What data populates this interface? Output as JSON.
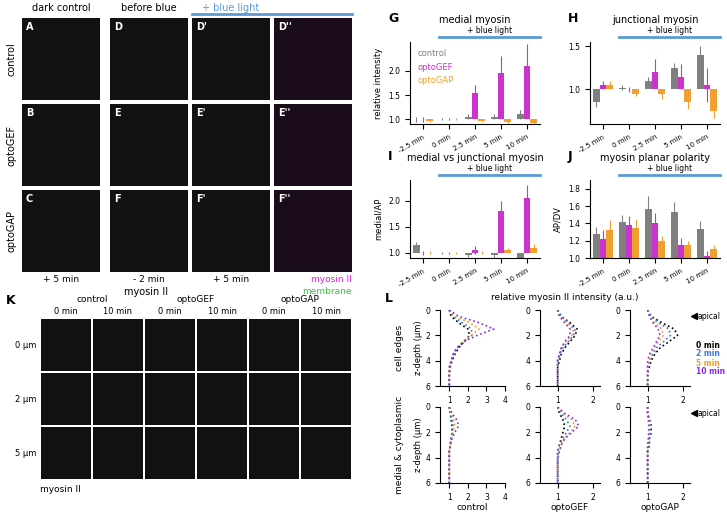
{
  "image_panels": {
    "grid": {
      "panel_labels": [
        [
          "A",
          "D",
          "D'",
          "D''"
        ],
        [
          "B",
          "E",
          "E'",
          "E''"
        ],
        [
          "C",
          "F",
          "F'",
          "F''"
        ]
      ],
      "column_headers": [
        "dark control",
        "before blue",
        "+ blue light"
      ],
      "header_colors": [
        "#000000",
        "#000000",
        "#5b9bd5"
      ],
      "row_labels": [
        "control",
        "optoGEF",
        "optoGAP"
      ],
      "time_labels": [
        "+ 5 min",
        "- 2 min",
        "+ 5 min"
      ],
      "stain_label": "myosin II",
      "overlay_legend": [
        {
          "name": "myosin II",
          "color": "#e020e0"
        },
        {
          "name": "membrane",
          "color": "#40c040"
        }
      ]
    },
    "K": {
      "panel": "K",
      "groups": [
        "control",
        "optoGEF",
        "optoGAP"
      ],
      "times": [
        "0 min",
        "10 min"
      ],
      "depths": [
        "0 µm",
        "2 µm",
        "5 µm"
      ],
      "stain_label": "myosin II"
    }
  },
  "chart_data": [
    {
      "panel": "G",
      "type": "bar",
      "title": "medial myosin",
      "ylabel": "relative intensity",
      "annotation": "+ blue light",
      "legend": "upper left",
      "categories": [
        "-2.5 min",
        "0 min",
        "2.5 min",
        "5 min",
        "10 min"
      ],
      "baseline": 1.0,
      "ylim": [
        0.9,
        2.6
      ],
      "yticks": [
        1.0,
        1.5,
        2.0
      ],
      "series": [
        {
          "name": "control",
          "color": "#808080",
          "values": [
            1.0,
            1.0,
            1.05,
            1.05,
            1.1
          ],
          "errors": [
            0.05,
            0.02,
            0.05,
            0.05,
            0.1
          ]
        },
        {
          "name": "optoGEF",
          "color": "#cc33cc",
          "values": [
            1.0,
            1.0,
            1.55,
            1.95,
            2.1
          ],
          "errors": [
            0.05,
            0.02,
            0.15,
            0.35,
            0.45
          ]
        },
        {
          "name": "optoGAP",
          "color": "#f0a030",
          "values": [
            0.97,
            1.0,
            0.97,
            0.95,
            0.93
          ],
          "errors": [
            0.03,
            0.02,
            0.03,
            0.05,
            0.05
          ]
        }
      ]
    },
    {
      "panel": "H",
      "type": "bar",
      "title": "junctional myosin",
      "annotation": "+ blue light",
      "categories": [
        "-2.5 min",
        "0 min",
        "2.5 min",
        "5 min",
        "10 min"
      ],
      "baseline": 1.0,
      "ylim": [
        0.6,
        1.55
      ],
      "yticks": [
        1.0,
        1.5
      ],
      "series": [
        {
          "name": "control",
          "color": "#808080",
          "values": [
            0.85,
            1.02,
            1.1,
            1.25,
            1.4
          ],
          "errors": [
            0.05,
            0.03,
            0.05,
            0.06,
            0.1
          ]
        },
        {
          "name": "optoGEF",
          "color": "#cc33cc",
          "values": [
            1.05,
            1.0,
            1.2,
            1.15,
            1.05
          ],
          "errors": [
            0.05,
            0.03,
            0.15,
            0.15,
            0.2
          ]
        },
        {
          "name": "optoGAP",
          "color": "#f0a030",
          "values": [
            1.05,
            0.95,
            0.95,
            0.85,
            0.75
          ],
          "errors": [
            0.05,
            0.03,
            0.06,
            0.08,
            0.08
          ]
        }
      ]
    },
    {
      "panel": "I",
      "type": "bar",
      "title": "medial vs junctional myosin",
      "ylabel": "medial/AP",
      "annotation": "+ blue light",
      "categories": [
        "-2.5 min",
        "0 min",
        "2.5 min",
        "5 min",
        "10 min"
      ],
      "baseline": 1.0,
      "ylim": [
        0.9,
        2.4
      ],
      "yticks": [
        1.0,
        1.5,
        2.0
      ],
      "series": [
        {
          "name": "control",
          "color": "#808080",
          "values": [
            1.15,
            1.0,
            0.95,
            0.95,
            0.9
          ],
          "errors": [
            0.05,
            0.02,
            0.04,
            0.05,
            0.05
          ]
        },
        {
          "name": "optoGEF",
          "color": "#cc33cc",
          "values": [
            1.0,
            1.0,
            1.05,
            1.8,
            2.05
          ],
          "errors": [
            0.04,
            0.02,
            0.08,
            0.2,
            0.25
          ]
        },
        {
          "name": "optoGAP",
          "color": "#f0a030",
          "values": [
            1.0,
            1.0,
            1.0,
            1.05,
            1.1
          ],
          "errors": [
            0.03,
            0.02,
            0.03,
            0.04,
            0.06
          ]
        }
      ]
    },
    {
      "panel": "J",
      "type": "bar",
      "title": "myosin planar polarity",
      "ylabel": "AP/DV",
      "annotation": "+ blue light",
      "categories": [
        "-2.5 min",
        "0 min",
        "2.5 min",
        "5 min",
        "10 min"
      ],
      "baseline": 1.0,
      "ylim": [
        1.0,
        1.9
      ],
      "yticks": [
        1.0,
        1.2,
        1.4,
        1.6,
        1.8
      ],
      "series": [
        {
          "name": "control",
          "color": "#808080",
          "values": [
            1.28,
            1.42,
            1.57,
            1.53,
            1.33
          ],
          "errors": [
            0.08,
            0.08,
            0.15,
            0.12,
            0.1
          ]
        },
        {
          "name": "optoGEF",
          "color": "#cc33cc",
          "values": [
            1.22,
            1.38,
            1.4,
            1.15,
            1.02
          ],
          "errors": [
            0.1,
            0.1,
            0.12,
            0.08,
            0.06
          ]
        },
        {
          "name": "optoGAP",
          "color": "#f0a030",
          "values": [
            1.32,
            1.35,
            1.2,
            1.15,
            1.1
          ],
          "errors": [
            0.12,
            0.1,
            0.05,
            0.05,
            0.05
          ]
        }
      ]
    },
    {
      "panel": "L",
      "type": "line",
      "title": "relative myosin II intensity (a.u.)",
      "ylabel": "z-depth (µm)",
      "annotation": "apical",
      "line_style": "dotted",
      "row_labels": [
        "cell edges",
        "medial & cytoplasmic"
      ],
      "column_labels": [
        "control",
        "optoGEF",
        "optoGAP"
      ],
      "y": [
        0,
        0.5,
        1,
        1.5,
        2,
        2.5,
        3,
        3.5,
        4,
        4.5,
        5,
        5.5,
        6
      ],
      "ylim": [
        6,
        0
      ],
      "yticks": [
        0,
        2,
        4,
        6
      ],
      "series": [
        {
          "name": "0 min",
          "color": "#000000"
        },
        {
          "name": "2 min",
          "color": "#3a7bd5"
        },
        {
          "name": "5 min",
          "color": "#e8a030"
        },
        {
          "name": "10 min",
          "color": "#8a2be2"
        }
      ],
      "subplots": [
        {
          "xlim": [
            0.5,
            4
          ],
          "xticks": [
            1,
            2,
            3,
            4
          ],
          "values": [
            [
              1.0,
              1.1,
              1.5,
              2.0,
              2.1,
              1.8,
              1.5,
              1.3,
              1.15,
              1.05,
              1.0,
              1.0,
              1.0
            ],
            [
              1.0,
              1.2,
              1.7,
              2.2,
              2.2,
              1.8,
              1.45,
              1.25,
              1.1,
              1.05,
              1.0,
              1.0,
              1.0
            ],
            [
              1.0,
              1.3,
              2.1,
              2.6,
              2.2,
              1.7,
              1.4,
              1.2,
              1.1,
              1.0,
              1.0,
              1.0,
              1.0
            ],
            [
              1.0,
              1.5,
              2.6,
              3.4,
              2.5,
              1.8,
              1.4,
              1.2,
              1.1,
              1.0,
              1.0,
              1.0,
              1.0
            ]
          ]
        },
        {
          "xlim": [
            0.5,
            2.2
          ],
          "xticks": [
            1,
            2
          ],
          "values": [
            [
              1.0,
              1.1,
              1.35,
              1.55,
              1.5,
              1.35,
              1.2,
              1.1,
              1.05,
              1.0,
              1.0,
              1.0,
              1.0
            ],
            [
              1.0,
              1.1,
              1.3,
              1.5,
              1.45,
              1.3,
              1.15,
              1.05,
              1.0,
              1.0,
              1.0,
              1.0,
              1.0
            ],
            [
              1.0,
              1.05,
              1.25,
              1.45,
              1.4,
              1.25,
              1.1,
              1.05,
              1.0,
              1.0,
              1.0,
              1.0,
              1.0
            ],
            [
              1.0,
              1.05,
              1.2,
              1.35,
              1.35,
              1.2,
              1.1,
              1.05,
              1.0,
              1.0,
              1.0,
              1.0,
              1.0
            ]
          ]
        },
        {
          "xlim": [
            0.5,
            2.2
          ],
          "xticks": [
            1,
            2
          ],
          "values": [
            [
              1.0,
              1.1,
              1.4,
              1.75,
              1.85,
              1.6,
              1.35,
              1.2,
              1.1,
              1.05,
              1.0,
              1.0,
              1.0
            ],
            [
              1.0,
              1.1,
              1.3,
              1.6,
              1.65,
              1.45,
              1.25,
              1.15,
              1.05,
              1.0,
              1.0,
              1.0,
              1.0
            ],
            [
              1.0,
              1.05,
              1.2,
              1.4,
              1.45,
              1.3,
              1.2,
              1.1,
              1.05,
              1.0,
              1.0,
              1.0,
              1.0
            ],
            [
              1.0,
              1.05,
              1.15,
              1.3,
              1.35,
              1.25,
              1.15,
              1.05,
              1.0,
              1.0,
              1.0,
              1.0,
              1.0
            ]
          ]
        },
        {
          "xlim": [
            0.5,
            4
          ],
          "xticks": [
            1,
            2,
            3,
            4
          ],
          "values": [
            [
              1.0,
              1.05,
              1.1,
              1.15,
              1.15,
              1.1,
              1.05,
              1.0,
              1.0,
              1.0,
              1.0,
              1.0,
              1.0
            ],
            [
              1.0,
              1.05,
              1.15,
              1.2,
              1.15,
              1.1,
              1.05,
              1.0,
              1.0,
              1.0,
              1.0,
              1.0,
              1.0
            ],
            [
              1.0,
              1.1,
              1.25,
              1.3,
              1.2,
              1.1,
              1.05,
              1.0,
              1.0,
              1.0,
              1.0,
              1.0,
              1.0
            ],
            [
              1.0,
              1.15,
              1.4,
              1.5,
              1.3,
              1.15,
              1.05,
              1.0,
              1.0,
              1.0,
              1.0,
              1.0,
              1.0
            ]
          ]
        },
        {
          "xlim": [
            0.5,
            2.2
          ],
          "xticks": [
            1,
            2
          ],
          "values": [
            [
              1.0,
              1.05,
              1.15,
              1.2,
              1.15,
              1.1,
              1.05,
              1.0,
              1.0,
              1.0,
              1.0,
              1.0,
              1.0
            ],
            [
              1.0,
              1.1,
              1.25,
              1.35,
              1.25,
              1.15,
              1.05,
              1.0,
              1.0,
              1.0,
              1.0,
              1.0,
              1.0
            ],
            [
              1.0,
              1.15,
              1.4,
              1.5,
              1.35,
              1.2,
              1.1,
              1.05,
              1.0,
              1.0,
              1.0,
              1.0,
              1.0
            ],
            [
              1.0,
              1.2,
              1.5,
              1.6,
              1.4,
              1.2,
              1.1,
              1.05,
              1.0,
              1.0,
              1.0,
              1.0,
              1.0
            ]
          ]
        },
        {
          "xlim": [
            0.5,
            2.2
          ],
          "xticks": [
            1,
            2
          ],
          "values": [
            [
              1.0,
              1.0,
              1.05,
              1.1,
              1.1,
              1.05,
              1.05,
              1.0,
              1.0,
              1.0,
              1.0,
              1.0,
              1.0
            ],
            [
              1.0,
              1.0,
              1.05,
              1.08,
              1.08,
              1.05,
              1.03,
              1.0,
              1.0,
              1.0,
              1.0,
              1.0,
              1.0
            ],
            [
              1.0,
              1.0,
              1.03,
              1.05,
              1.05,
              1.03,
              1.0,
              1.0,
              1.0,
              1.0,
              1.0,
              1.0,
              1.0
            ],
            [
              1.0,
              1.0,
              1.02,
              1.03,
              1.03,
              1.02,
              1.0,
              1.0,
              1.0,
              1.0,
              1.0,
              1.0,
              1.0
            ]
          ]
        }
      ]
    }
  ]
}
